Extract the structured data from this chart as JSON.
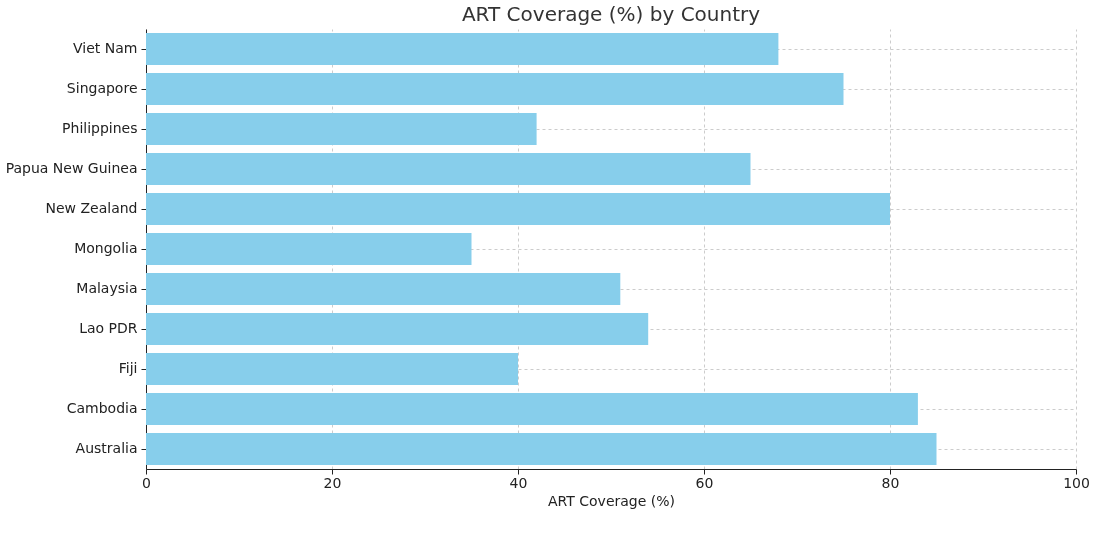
{
  "chart_data": {
    "type": "bar",
    "orientation": "horizontal",
    "title": "ART Coverage (%) by Country",
    "xlabel": "ART Coverage (%)",
    "categories": [
      "Viet Nam",
      "Singapore",
      "Philippines",
      "Papua New Guinea",
      "New Zealand",
      "Mongolia",
      "Malaysia",
      "Lao PDR",
      "Fiji",
      "Cambodia",
      "Australia"
    ],
    "values": [
      68,
      75,
      42,
      65,
      80,
      35,
      51,
      54,
      40,
      83,
      85
    ],
    "color": "#87ceeb",
    "xlim": [
      0,
      100
    ],
    "xticks": [
      0,
      20,
      40,
      60,
      80,
      100
    ],
    "grid": true
  }
}
